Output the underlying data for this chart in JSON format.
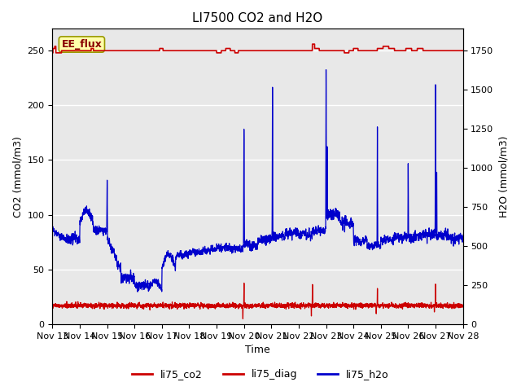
{
  "title": "LI7500 CO2 and H2O",
  "xlabel": "Time",
  "ylabel_left": "CO2 (mmol/m3)",
  "ylabel_right": "H2O (mmol/m3)",
  "ylim_left": [
    0,
    270
  ],
  "ylim_right": [
    0,
    1890
  ],
  "xlim_hours": [
    0,
    360
  ],
  "x_tick_labels": [
    "Nov 13",
    "Nov 14",
    "Nov 15",
    "Nov 16",
    "Nov 17",
    "Nov 18",
    "Nov 19",
    "Nov 20",
    "Nov 21",
    "Nov 22",
    "Nov 23",
    "Nov 24",
    "Nov 25",
    "Nov 26",
    "Nov 27",
    "Nov 28"
  ],
  "x_tick_positions": [
    0,
    24,
    48,
    72,
    96,
    120,
    144,
    168,
    192,
    216,
    240,
    264,
    288,
    312,
    336,
    360
  ],
  "color_co2": "#cc0000",
  "color_diag": "#cc0000",
  "color_h2o": "#0000cc",
  "bg_color": "#e8e8e8",
  "bg_stripe_light": "#f0f0f0",
  "ee_flux_label": "EE_flux",
  "ee_flux_fg": "#880000",
  "ee_flux_bg": "#ffffaa",
  "ee_flux_border": "#999900",
  "legend_labels": [
    "li75_co2",
    "li75_diag",
    "li75_h2o"
  ],
  "legend_colors": [
    "#cc0000",
    "#cc0000",
    "#0000cc"
  ],
  "title_fontsize": 11,
  "axis_fontsize": 9,
  "tick_fontsize": 8,
  "legend_fontsize": 9,
  "grid_color": "#ffffff",
  "grid_linewidth": 1.0
}
